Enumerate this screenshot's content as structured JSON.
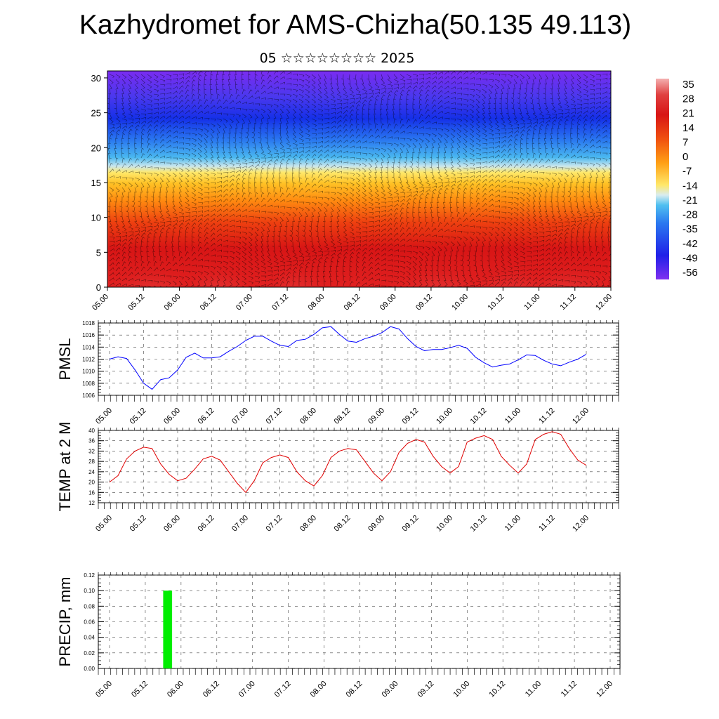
{
  "header": {
    "title": "Kazhydromet for AMS-Chizha(50.135 49.113)",
    "subtitle": "05 ☆☆☆☆☆☆☆☆ 2025"
  },
  "chart_data": [
    {
      "type": "heatmap",
      "y_ticks": [
        0,
        5,
        10,
        15,
        20,
        25,
        30
      ],
      "x_ticks": [
        "05.00",
        "05.12",
        "06.00",
        "06.12",
        "07.00",
        "07.12",
        "08.00",
        "08.12",
        "09.00",
        "09.12",
        "10.00",
        "10.12",
        "11.00",
        "11.12",
        "12.00"
      ],
      "ylim": [
        0,
        31
      ],
      "colorbar_labels": [
        "35",
        "28",
        "21",
        "14",
        "7",
        "0",
        "-7",
        "-14",
        "-21",
        "-28",
        "-35",
        "-42",
        "-49",
        "-56"
      ],
      "colorbar_range": [
        -60,
        38
      ],
      "overlay": "wind barbs",
      "colors": {
        "hot": "#d81515",
        "warm": "#ff9a10",
        "mild": "#ffe04a",
        "cool": "#4ab8f0",
        "cold": "#1530e8",
        "coldest": "#7a2cf0"
      }
    },
    {
      "type": "line",
      "ylabel": "PMSL",
      "ylim": [
        1006,
        1018
      ],
      "y_ticks": [
        "1018",
        "1016",
        "1014",
        "1012",
        "1010",
        "1008",
        "1006"
      ],
      "x_ticks": [
        "05.00",
        "05.12",
        "06.00",
        "06.12",
        "07.00",
        "07.12",
        "08.00",
        "08.12",
        "09.00",
        "09.12",
        "10.00",
        "10.12",
        "11.00",
        "11.12",
        "12.00"
      ],
      "color": "#0000ff",
      "values": [
        1012,
        1012.4,
        1012.1,
        1010.2,
        1008,
        1007,
        1008.6,
        1008.9,
        1010.2,
        1012.3,
        1013,
        1012.2,
        1012.2,
        1012.4,
        1013.3,
        1014.1,
        1015.1,
        1015.8,
        1015.8,
        1015,
        1014.3,
        1014.1,
        1015.1,
        1015.3,
        1016.1,
        1017.2,
        1017.4,
        1016.1,
        1015,
        1014.8,
        1015.4,
        1015.8,
        1016.4,
        1017.4,
        1017,
        1015.4,
        1014.1,
        1013.4,
        1013.6,
        1013.6,
        1013.9,
        1014.3,
        1013.8,
        1012.3,
        1011.4,
        1010.7,
        1011,
        1011.2,
        1011.9,
        1012.7,
        1012.6,
        1011.8,
        1011.2,
        1010.9,
        1011.5,
        1012,
        1012.8
      ]
    },
    {
      "type": "line",
      "ylabel": "TEMP at 2 M",
      "ylim": [
        12,
        40
      ],
      "y_ticks": [
        "40",
        "36",
        "32",
        "28",
        "24",
        "20",
        "16",
        "12"
      ],
      "x_ticks": [
        "05.00",
        "05.12",
        "06.00",
        "06.12",
        "07.00",
        "07.12",
        "08.00",
        "08.12",
        "09.00",
        "09.12",
        "10.00",
        "10.12",
        "11.00",
        "11.12",
        "12.00"
      ],
      "color": "#e00000",
      "values": [
        20,
        22.5,
        29,
        32,
        33.5,
        33,
        27,
        23,
        20.5,
        21.5,
        25,
        29,
        30,
        28.5,
        24,
        19.5,
        16,
        20.5,
        27.5,
        29.5,
        30.5,
        29.5,
        24,
        20.5,
        18.5,
        22.5,
        29.5,
        32,
        33,
        32.5,
        28,
        23.5,
        20.5,
        24,
        31.5,
        35,
        36.5,
        35.5,
        30,
        26,
        23.5,
        26,
        35.5,
        37,
        38,
        36.5,
        30,
        26.5,
        23.5,
        27,
        36.5,
        38.5,
        39.5,
        38.5,
        33,
        28.5,
        26.5
      ]
    },
    {
      "type": "bar",
      "ylabel": "PRECIP, mm",
      "ylim": [
        0,
        0.12
      ],
      "y_ticks": [
        "0.12",
        "0.10",
        "0.08",
        "0.06",
        "0.04",
        "0.02",
        "0.00"
      ],
      "x_ticks": [
        "05.00",
        "05.12",
        "06.00",
        "06.12",
        "07.00",
        "07.12",
        "08.00",
        "08.12",
        "09.00",
        "09.12",
        "10.00",
        "10.12",
        "11.00",
        "11.12",
        "12.00"
      ],
      "color": "#00ee00",
      "bars": [
        {
          "x_hours": 19.5,
          "width_hours": 3,
          "value": 0.1
        }
      ]
    }
  ]
}
